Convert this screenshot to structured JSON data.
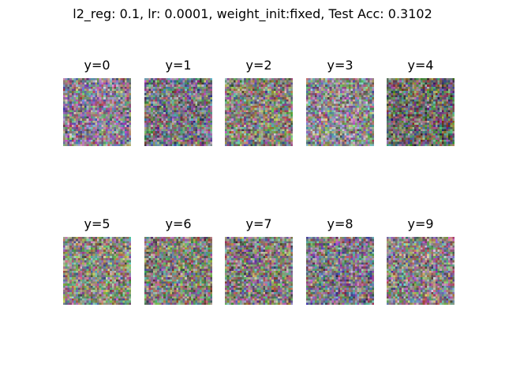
{
  "chart_data": {
    "type": "image_grid",
    "title": "l2_reg: 0.1, lr: 0.0001, weight_init:fixed, Test Acc: 0.3102",
    "rows": 2,
    "cols": 5,
    "panels": [
      {
        "label": "y=0",
        "class": 0,
        "image_size": [
          32,
          32
        ],
        "mean_color": "#8a8090"
      },
      {
        "label": "y=1",
        "class": 1,
        "image_size": [
          32,
          32
        ],
        "mean_color": "#7a7880"
      },
      {
        "label": "y=2",
        "class": 2,
        "image_size": [
          32,
          32
        ],
        "mean_color": "#858378"
      },
      {
        "label": "y=3",
        "class": 3,
        "image_size": [
          32,
          32
        ],
        "mean_color": "#8d8a8c"
      },
      {
        "label": "y=4",
        "class": 4,
        "image_size": [
          32,
          32
        ],
        "mean_color": "#6f6e68"
      },
      {
        "label": "y=5",
        "class": 5,
        "image_size": [
          32,
          32
        ],
        "mean_color": "#8a8a7e"
      },
      {
        "label": "y=6",
        "class": 6,
        "image_size": [
          32,
          32
        ],
        "mean_color": "#828078"
      },
      {
        "label": "y=7",
        "class": 7,
        "image_size": [
          32,
          32
        ],
        "mean_color": "#857e7c"
      },
      {
        "label": "y=8",
        "class": 8,
        "image_size": [
          32,
          32
        ],
        "mean_color": "#7e7a86"
      },
      {
        "label": "y=9",
        "class": 9,
        "image_size": [
          32,
          32
        ],
        "mean_color": "#8a8486"
      }
    ]
  }
}
